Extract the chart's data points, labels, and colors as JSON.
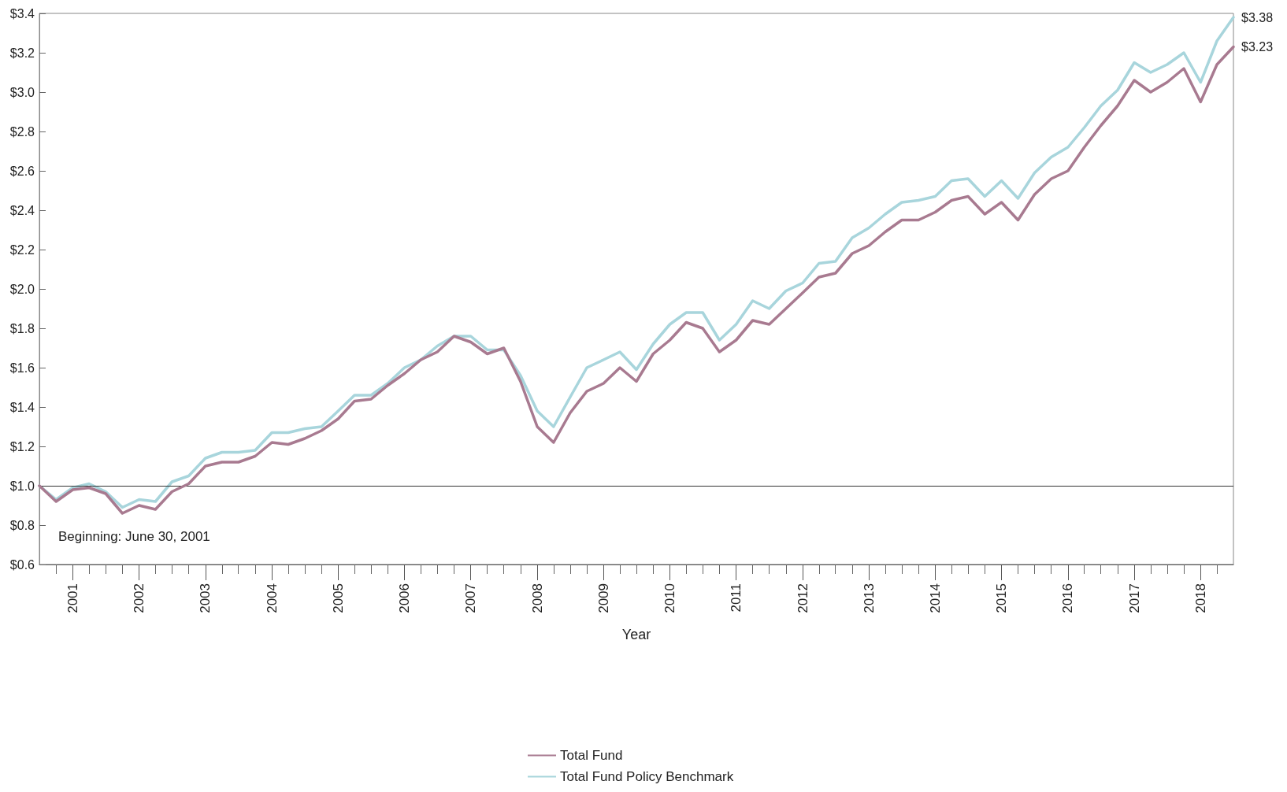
{
  "chart_data": {
    "type": "line",
    "xlabel": "Year",
    "annotations": [
      "Beginning: June 30, 2001"
    ],
    "x": [
      "2001-06-30",
      "2001-09-30",
      "2001-12-31",
      "2002-03-31",
      "2002-06-30",
      "2002-09-30",
      "2002-12-31",
      "2003-03-31",
      "2003-06-30",
      "2003-09-30",
      "2003-12-31",
      "2004-03-31",
      "2004-06-30",
      "2004-09-30",
      "2004-12-31",
      "2005-03-31",
      "2005-06-30",
      "2005-09-30",
      "2005-12-31",
      "2006-03-31",
      "2006-06-30",
      "2006-09-30",
      "2006-12-31",
      "2007-03-31",
      "2007-06-30",
      "2007-09-30",
      "2007-12-31",
      "2008-03-31",
      "2008-06-30",
      "2008-09-30",
      "2008-12-31",
      "2009-03-31",
      "2009-06-30",
      "2009-09-30",
      "2009-12-31",
      "2010-03-31",
      "2010-06-30",
      "2010-09-30",
      "2010-12-31",
      "2011-03-31",
      "2011-06-30",
      "2011-09-30",
      "2011-12-31",
      "2012-03-31",
      "2012-06-30",
      "2012-09-30",
      "2012-12-31",
      "2013-03-31",
      "2013-06-30",
      "2013-09-30",
      "2013-12-31",
      "2014-03-31",
      "2014-06-30",
      "2014-09-30",
      "2014-12-31",
      "2015-03-31",
      "2015-06-30",
      "2015-09-30",
      "2015-12-31",
      "2016-03-31",
      "2016-06-30",
      "2016-09-30",
      "2016-12-31",
      "2017-03-31",
      "2017-06-30",
      "2017-09-30",
      "2017-12-31",
      "2018-03-31",
      "2018-06-30",
      "2018-09-30",
      "2018-12-31",
      "2019-03-31",
      "2019-06-30"
    ],
    "series": [
      {
        "name": "Total Fund",
        "color": "#a87a90",
        "values": [
          1.0,
          0.92,
          0.98,
          0.99,
          0.96,
          0.86,
          0.9,
          0.88,
          0.97,
          1.01,
          1.1,
          1.12,
          1.12,
          1.15,
          1.22,
          1.21,
          1.24,
          1.28,
          1.34,
          1.43,
          1.44,
          1.51,
          1.57,
          1.64,
          1.68,
          1.76,
          1.73,
          1.67,
          1.7,
          1.53,
          1.3,
          1.22,
          1.37,
          1.48,
          1.52,
          1.6,
          1.53,
          1.67,
          1.74,
          1.83,
          1.8,
          1.68,
          1.74,
          1.84,
          1.82,
          1.9,
          1.98,
          2.06,
          2.08,
          2.18,
          2.22,
          2.29,
          2.35,
          2.35,
          2.39,
          2.45,
          2.47,
          2.38,
          2.44,
          2.35,
          2.48,
          2.56,
          2.6,
          2.72,
          2.83,
          2.93,
          3.06,
          3.0,
          3.05,
          3.12,
          2.95,
          3.14,
          3.23
        ],
        "value_labels": [
          null,
          null,
          null,
          null,
          null,
          null,
          null,
          null,
          null,
          null,
          null,
          null,
          null,
          null,
          null,
          null,
          null,
          null,
          null,
          null,
          null,
          null,
          null,
          null,
          null,
          null,
          null,
          null,
          null,
          null,
          null,
          null,
          null,
          null,
          null,
          null,
          null,
          null,
          null,
          null,
          null,
          null,
          null,
          null,
          null,
          null,
          null,
          null,
          null,
          null,
          null,
          null,
          null,
          null,
          null,
          null,
          null,
          null,
          null,
          null,
          null,
          null,
          null,
          null,
          null,
          null,
          null,
          null,
          null,
          null,
          null,
          null,
          "$3.23"
        ]
      },
      {
        "name": "Total Fund Policy Benchmark",
        "color": "#a8d5dc",
        "values": [
          1.0,
          0.93,
          0.99,
          1.01,
          0.97,
          0.89,
          0.93,
          0.92,
          1.02,
          1.05,
          1.14,
          1.17,
          1.17,
          1.18,
          1.27,
          1.27,
          1.29,
          1.3,
          1.38,
          1.46,
          1.46,
          1.52,
          1.6,
          1.64,
          1.71,
          1.76,
          1.76,
          1.69,
          1.69,
          1.56,
          1.38,
          1.3,
          1.45,
          1.6,
          1.64,
          1.68,
          1.59,
          1.72,
          1.82,
          1.88,
          1.88,
          1.74,
          1.82,
          1.94,
          1.9,
          1.99,
          2.03,
          2.13,
          2.14,
          2.26,
          2.31,
          2.38,
          2.44,
          2.45,
          2.47,
          2.55,
          2.56,
          2.47,
          2.55,
          2.46,
          2.59,
          2.67,
          2.72,
          2.82,
          2.93,
          3.01,
          3.15,
          3.1,
          3.14,
          3.2,
          3.05,
          3.26,
          3.38
        ],
        "value_labels": [
          null,
          null,
          null,
          null,
          null,
          null,
          null,
          null,
          null,
          null,
          null,
          null,
          null,
          null,
          null,
          null,
          null,
          null,
          null,
          null,
          null,
          null,
          null,
          null,
          null,
          null,
          null,
          null,
          null,
          null,
          null,
          null,
          null,
          null,
          null,
          null,
          null,
          null,
          null,
          null,
          null,
          null,
          null,
          null,
          null,
          null,
          null,
          null,
          null,
          null,
          null,
          null,
          null,
          null,
          null,
          null,
          null,
          null,
          null,
          null,
          null,
          null,
          null,
          null,
          null,
          null,
          null,
          null,
          null,
          null,
          null,
          null,
          "$3.38"
        ]
      }
    ],
    "xlim": [
      "2001-06-30",
      "2019-06-30"
    ],
    "xticks": [
      {
        "value": "2001-09-30",
        "label": null
      },
      {
        "value": "2001-12-31",
        "label": "2001"
      },
      {
        "value": "2002-03-31",
        "label": null
      },
      {
        "value": "2002-06-30",
        "label": null
      },
      {
        "value": "2002-09-30",
        "label": null
      },
      {
        "value": "2002-12-31",
        "label": "2002"
      },
      {
        "value": "2003-03-31",
        "label": null
      },
      {
        "value": "2003-06-30",
        "label": null
      },
      {
        "value": "2003-09-30",
        "label": null
      },
      {
        "value": "2003-12-31",
        "label": "2003"
      },
      {
        "value": "2004-03-31",
        "label": null
      },
      {
        "value": "2004-06-30",
        "label": null
      },
      {
        "value": "2004-09-30",
        "label": null
      },
      {
        "value": "2004-12-31",
        "label": "2004"
      },
      {
        "value": "2005-03-31",
        "label": null
      },
      {
        "value": "2005-06-30",
        "label": null
      },
      {
        "value": "2005-09-30",
        "label": null
      },
      {
        "value": "2005-12-31",
        "label": "2005"
      },
      {
        "value": "2006-03-31",
        "label": null
      },
      {
        "value": "2006-06-30",
        "label": null
      },
      {
        "value": "2006-09-30",
        "label": null
      },
      {
        "value": "2006-12-31",
        "label": "2006"
      },
      {
        "value": "2007-03-31",
        "label": null
      },
      {
        "value": "2007-06-30",
        "label": null
      },
      {
        "value": "2007-09-30",
        "label": null
      },
      {
        "value": "2007-12-31",
        "label": "2007"
      },
      {
        "value": "2008-03-31",
        "label": null
      },
      {
        "value": "2008-06-30",
        "label": null
      },
      {
        "value": "2008-09-30",
        "label": null
      },
      {
        "value": "2008-12-31",
        "label": "2008"
      },
      {
        "value": "2009-03-31",
        "label": null
      },
      {
        "value": "2009-06-30",
        "label": null
      },
      {
        "value": "2009-09-30",
        "label": null
      },
      {
        "value": "2009-12-31",
        "label": "2009"
      },
      {
        "value": "2010-03-31",
        "label": null
      },
      {
        "value": "2010-06-30",
        "label": null
      },
      {
        "value": "2010-09-30",
        "label": null
      },
      {
        "value": "2010-12-31",
        "label": "2010"
      },
      {
        "value": "2011-03-31",
        "label": null
      },
      {
        "value": "2011-06-30",
        "label": null
      },
      {
        "value": "2011-09-30",
        "label": null
      },
      {
        "value": "2011-12-31",
        "label": "2011"
      },
      {
        "value": "2012-03-31",
        "label": null
      },
      {
        "value": "2012-06-30",
        "label": null
      },
      {
        "value": "2012-09-30",
        "label": null
      },
      {
        "value": "2012-12-31",
        "label": "2012"
      },
      {
        "value": "2013-03-31",
        "label": null
      },
      {
        "value": "2013-06-30",
        "label": null
      },
      {
        "value": "2013-09-30",
        "label": null
      },
      {
        "value": "2013-12-31",
        "label": "2013"
      },
      {
        "value": "2014-03-31",
        "label": null
      },
      {
        "value": "2014-06-30",
        "label": null
      },
      {
        "value": "2014-09-30",
        "label": null
      },
      {
        "value": "2014-12-31",
        "label": "2014"
      },
      {
        "value": "2015-03-31",
        "label": null
      },
      {
        "value": "2015-06-30",
        "label": null
      },
      {
        "value": "2015-09-30",
        "label": null
      },
      {
        "value": "2015-12-31",
        "label": "2015"
      },
      {
        "value": "2016-03-31",
        "label": null
      },
      {
        "value": "2016-06-30",
        "label": null
      },
      {
        "value": "2016-09-30",
        "label": null
      },
      {
        "value": "2016-12-31",
        "label": "2016"
      },
      {
        "value": "2017-03-31",
        "label": null
      },
      {
        "value": "2017-06-30",
        "label": null
      },
      {
        "value": "2017-09-30",
        "label": null
      },
      {
        "value": "2017-12-31",
        "label": "2017"
      },
      {
        "value": "2018-03-31",
        "label": null
      },
      {
        "value": "2018-06-30",
        "label": null
      },
      {
        "value": "2018-09-30",
        "label": null
      },
      {
        "value": "2018-12-31",
        "label": "2018"
      },
      {
        "value": "2019-03-31",
        "label": null
      }
    ],
    "ylim": [
      0.6,
      3.4
    ],
    "yticks": [
      {
        "value": 0.6,
        "label": "$0.6"
      },
      {
        "value": 0.8,
        "label": "$0.8"
      },
      {
        "value": 1.0,
        "label": "$1.0"
      },
      {
        "value": 1.2,
        "label": "$1.2"
      },
      {
        "value": 1.4,
        "label": "$1.4"
      },
      {
        "value": 1.6,
        "label": "$1.6"
      },
      {
        "value": 1.8,
        "label": "$1.8"
      },
      {
        "value": 2.0,
        "label": "$2.0"
      },
      {
        "value": 2.2,
        "label": "$2.2"
      },
      {
        "value": 2.4,
        "label": "$2.4"
      },
      {
        "value": 2.6,
        "label": "$2.6"
      },
      {
        "value": 2.8,
        "label": "$2.8"
      },
      {
        "value": 3.0,
        "label": "$3.0"
      },
      {
        "value": 3.2,
        "label": "$3.2"
      },
      {
        "value": 3.4,
        "label": "$3.4"
      }
    ],
    "ref_lines": [
      {
        "axis": "y",
        "value": 1.0,
        "color": "#333333"
      }
    ],
    "legend": "bottom",
    "line_style": "solid"
  }
}
